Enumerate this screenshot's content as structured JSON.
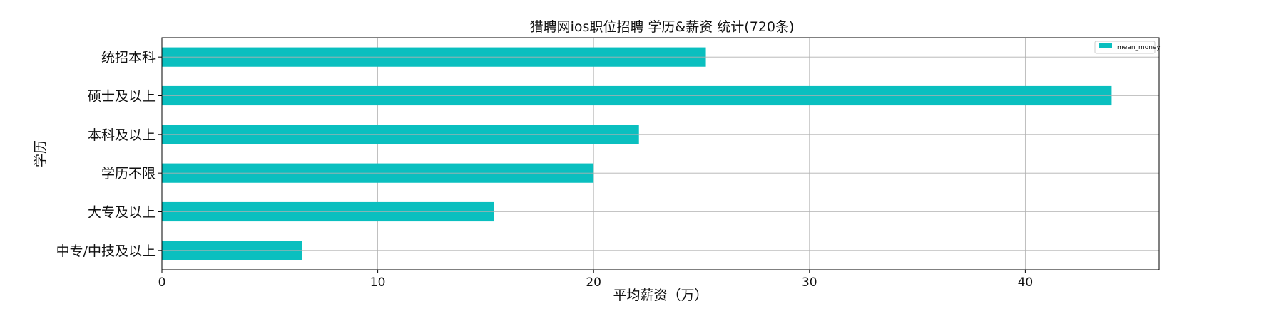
{
  "chart_data": {
    "type": "bar",
    "orientation": "horizontal",
    "title": "猎聘网ios职位招聘 学历&薪资 统计(720条)",
    "xlabel": "平均薪资（万）",
    "ylabel": "学历",
    "categories": [
      "统招本科",
      "硕士及以上",
      "本科及以上",
      "学历不限",
      "大专及以上",
      "中专/中技及以上"
    ],
    "series": [
      {
        "name": "mean_money",
        "values": [
          25.2,
          44.0,
          22.1,
          20.0,
          15.4,
          6.5
        ]
      }
    ],
    "xlim": [
      0,
      46.2
    ],
    "xticks": [
      0,
      10,
      20,
      30,
      40
    ],
    "grid": true,
    "legend_position": "top-right",
    "bar_color": "#0ABFBF"
  }
}
